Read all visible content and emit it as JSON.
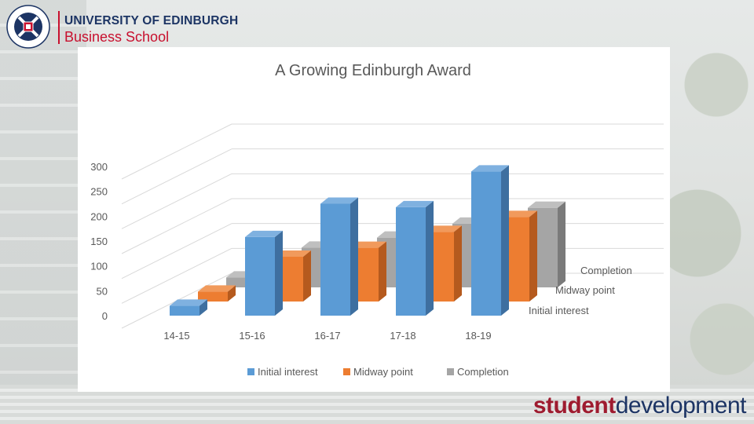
{
  "header": {
    "line1": "UNIVERSITY OF EDINBURGH",
    "line2": "Business School",
    "crest_text": "THE UNIVERSITY OF EDINBURGH"
  },
  "footer": {
    "brand_bold": "student",
    "brand_light": "development"
  },
  "colors": {
    "initial": "#5b9bd5",
    "midway": "#ed7d31",
    "completion": "#a5a5a5",
    "brand_red": "#c8102e",
    "brand_navy": "#1c3464"
  },
  "chart_data": {
    "type": "bar",
    "title": "A Growing Edinburgh Award",
    "categories": [
      "14-15",
      "15-16",
      "16-17",
      "17-18",
      "18-19"
    ],
    "series": [
      {
        "name": "Initial interest",
        "values": [
          20,
          158,
          225,
          218,
          290
        ]
      },
      {
        "name": "Midway point",
        "values": [
          20,
          90,
          108,
          140,
          170
        ]
      },
      {
        "name": "Completion",
        "values": [
          20,
          80,
          100,
          128,
          160
        ]
      }
    ],
    "y_ticks": [
      0,
      50,
      100,
      150,
      200,
      250,
      300
    ],
    "ylim": [
      0,
      300
    ],
    "grid": true,
    "legend_position": "bottom",
    "projection": "3d-column"
  }
}
